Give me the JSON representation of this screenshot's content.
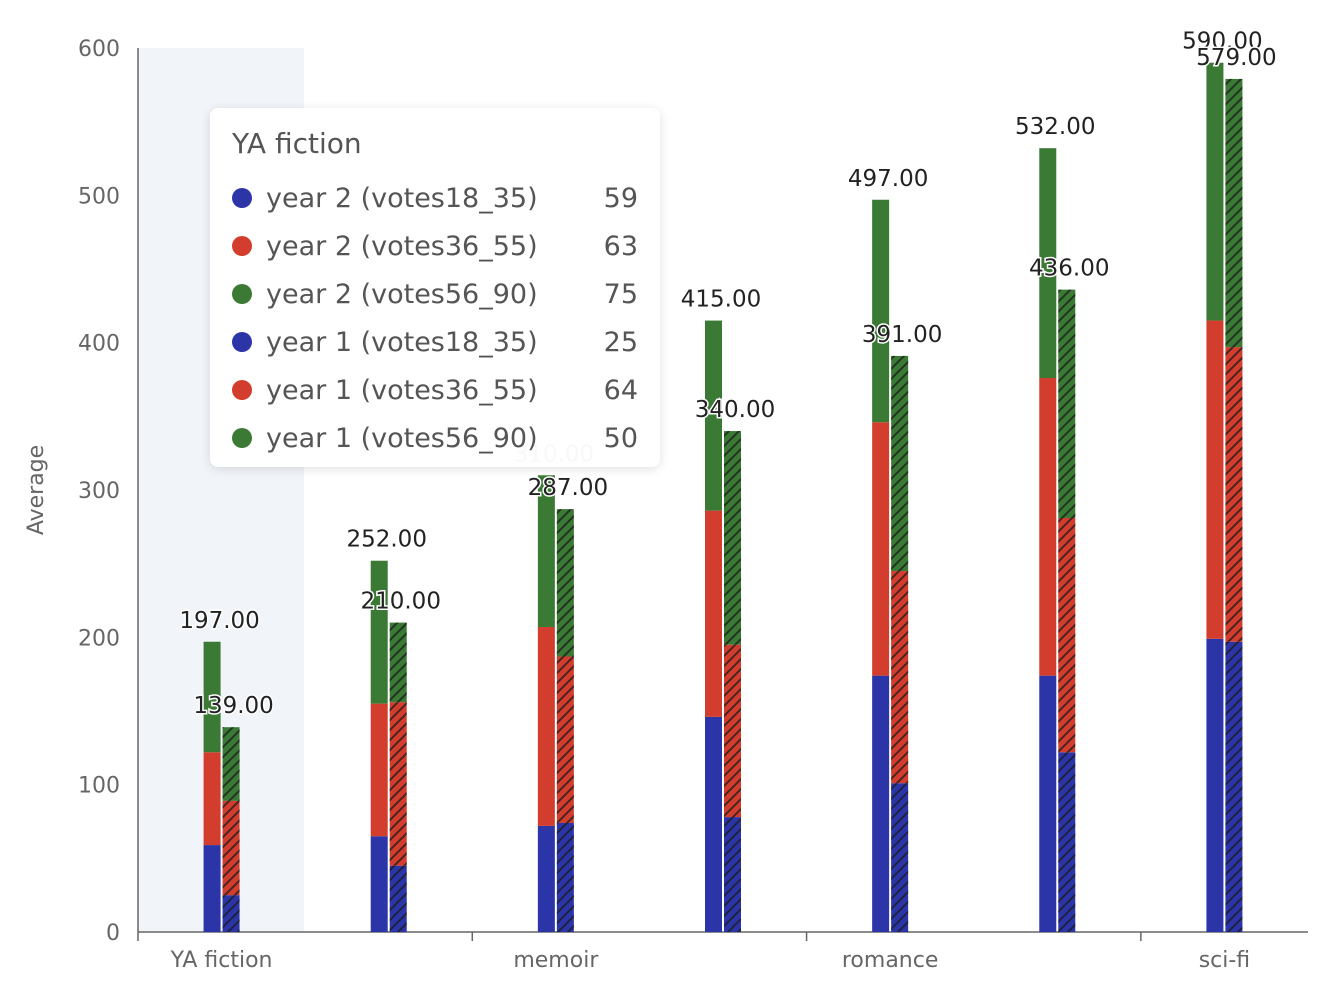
{
  "chart_data": {
    "type": "bar",
    "stacked": true,
    "ylabel": "Average",
    "ylim": [
      0,
      600
    ],
    "yticks": [
      0,
      100,
      200,
      300,
      400,
      500,
      600
    ],
    "categories": [
      "YA fiction",
      "",
      "memoir",
      "",
      "romance",
      "",
      "sci-fi"
    ],
    "x_tick_labels": [
      "YA fiction",
      "memoir",
      "romance",
      "sci-fi"
    ],
    "highlighted_category": "YA fiction",
    "groups": [
      {
        "name": "year 2",
        "pattern": "solid",
        "totals": [
          "197.00",
          "252.00",
          "310.00",
          "415.00",
          "497.00",
          "532.00",
          "590.00"
        ],
        "series": [
          {
            "name": "year 2 (votes18_35)",
            "color": "#2b35a8",
            "values": [
              59,
              65,
              72,
              146,
              174,
              174,
              199
            ]
          },
          {
            "name": "year 2 (votes36_55)",
            "color": "#d23d2e",
            "values": [
              63,
              90,
              135,
              140,
              172,
              202,
              216
            ]
          },
          {
            "name": "year 2 (votes56_90)",
            "color": "#3a7a34",
            "values": [
              75,
              97,
              103,
              129,
              151,
              156,
              175
            ]
          }
        ]
      },
      {
        "name": "year 1",
        "pattern": "hatched",
        "totals": [
          "139.00",
          "210.00",
          "287.00",
          "340.00",
          "391.00",
          "436.00",
          "579.00"
        ],
        "series": [
          {
            "name": "year 1 (votes18_35)",
            "color": "#2b35a8",
            "values": [
              25,
              45,
              74,
              78,
              101,
              122,
              197
            ]
          },
          {
            "name": "year 1 (votes36_55)",
            "color": "#d23d2e",
            "values": [
              64,
              111,
              113,
              117,
              144,
              159,
              200
            ]
          },
          {
            "name": "year 1 (votes56_90)",
            "color": "#3a7a34",
            "values": [
              50,
              54,
              100,
              145,
              146,
              155,
              182
            ]
          }
        ]
      }
    ]
  },
  "tooltip": {
    "title": "YA fiction",
    "rows": [
      {
        "name": "year 2 (votes18_35)",
        "value": "59",
        "color": "#2b35a8"
      },
      {
        "name": "year 2 (votes36_55)",
        "value": "63",
        "color": "#d23d2e"
      },
      {
        "name": "year 2 (votes56_90)",
        "value": "75",
        "color": "#3a7a34"
      },
      {
        "name": "year 1 (votes18_35)",
        "value": "25",
        "color": "#2b35a8"
      },
      {
        "name": "year 1 (votes36_55)",
        "value": "64",
        "color": "#d23d2e"
      },
      {
        "name": "year 1 (votes56_90)",
        "value": "50",
        "color": "#3a7a34"
      }
    ]
  }
}
